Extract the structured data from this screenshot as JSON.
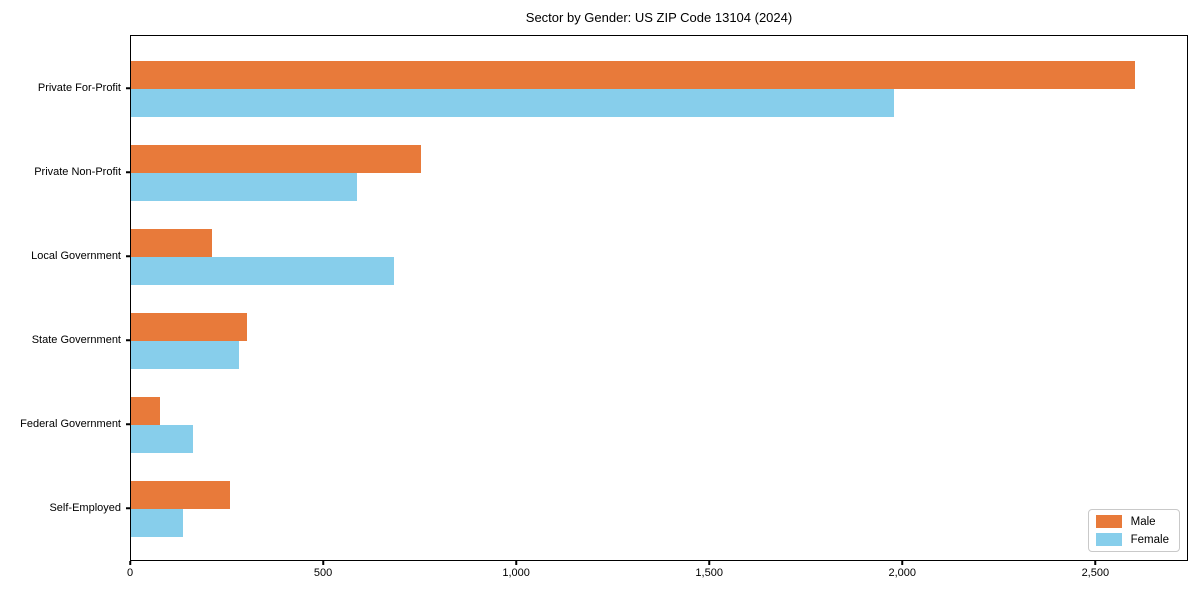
{
  "title": "Sector by Gender: US ZIP Code 13104 (2024)",
  "chart_data": {
    "type": "bar",
    "orientation": "horizontal",
    "title": "Sector by Gender: US ZIP Code 13104 (2024)",
    "xlabel": "",
    "ylabel": "",
    "categories": [
      "Private For-Profit",
      "Private Non-Profit",
      "Local Government",
      "State Government",
      "Federal Government",
      "Self-Employed"
    ],
    "series": [
      {
        "name": "Male",
        "color": "#e87a3a",
        "values": [
          2600,
          750,
          210,
          300,
          75,
          255
        ]
      },
      {
        "name": "Female",
        "color": "#87ceeb",
        "values": [
          1975,
          585,
          680,
          280,
          160,
          135
        ]
      }
    ],
    "xlim": [
      0,
      2740
    ],
    "xticks": [
      0,
      500,
      1000,
      1500,
      2000,
      2500
    ],
    "xtick_labels": [
      "0",
      "500",
      "1,000",
      "1,500",
      "2,000",
      "2,500"
    ],
    "grid": false,
    "legend_position": "lower right",
    "plot_border_color": "#000000",
    "background_color": "#ffffff"
  }
}
